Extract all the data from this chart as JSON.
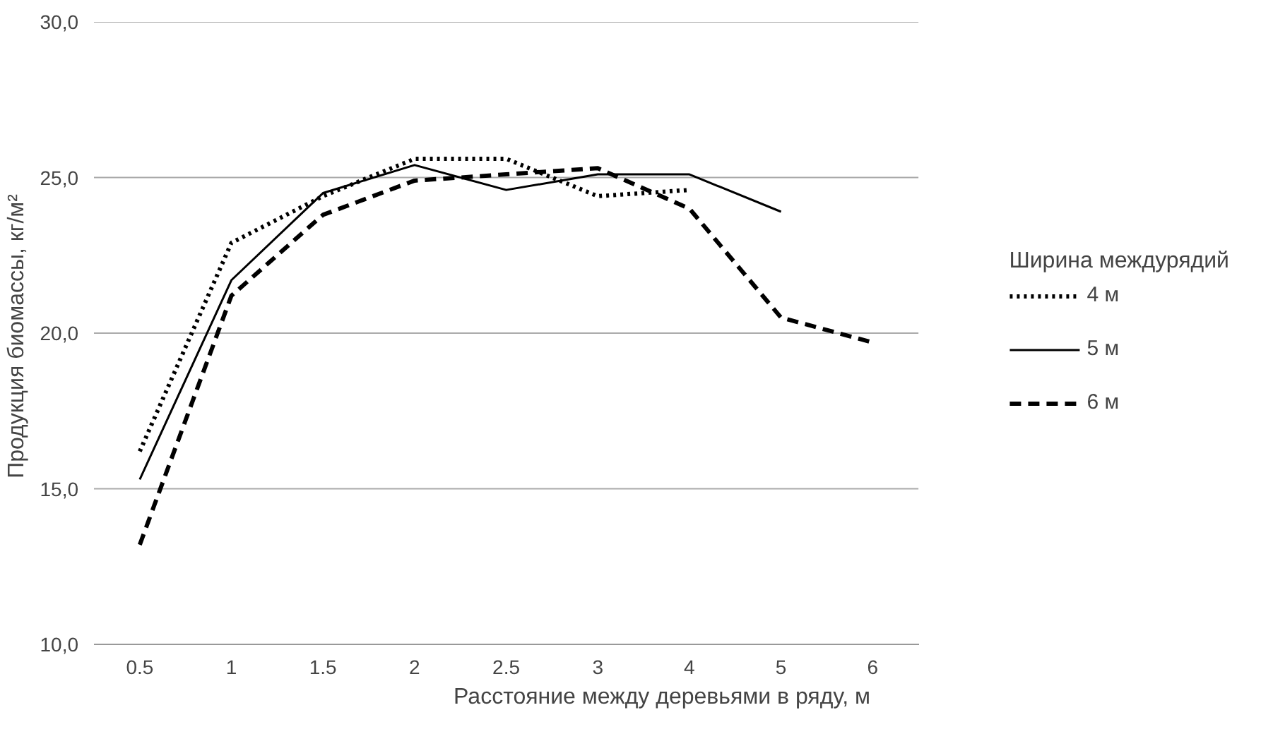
{
  "chart_data": {
    "type": "line",
    "xlabel": "Расстояние между деревьями в ряду, м",
    "ylabel": "Продукция  биомассы, кг/м²",
    "legend_title": "Ширина междурядий",
    "categories": [
      "0.5",
      "1",
      "1.5",
      "2",
      "2.5",
      "3",
      "4",
      "5",
      "6"
    ],
    "series": [
      {
        "name": "4 м",
        "color": "#000000",
        "line_style": "dotted",
        "values": [
          16.2,
          22.9,
          24.4,
          25.6,
          25.6,
          24.4,
          24.6,
          null,
          null
        ]
      },
      {
        "name": "5 м",
        "color": "#000000",
        "line_style": "solid",
        "values": [
          15.3,
          21.7,
          24.5,
          25.4,
          24.6,
          25.1,
          25.1,
          23.9,
          null
        ]
      },
      {
        "name": "6 м",
        "color": "#000000",
        "line_style": "dashed",
        "values": [
          13.2,
          21.2,
          23.8,
          24.9,
          25.1,
          25.3,
          24.0,
          20.5,
          19.7
        ]
      }
    ],
    "ylim": [
      10,
      30
    ],
    "yticks": [
      {
        "value": 10,
        "label": "10,0"
      },
      {
        "value": 15,
        "label": "15,0"
      },
      {
        "value": 20,
        "label": "20,0"
      },
      {
        "value": 25,
        "label": "25,0"
      },
      {
        "value": 30,
        "label": "30,0"
      }
    ],
    "grid": "y",
    "legend": "right",
    "marker": "none"
  }
}
